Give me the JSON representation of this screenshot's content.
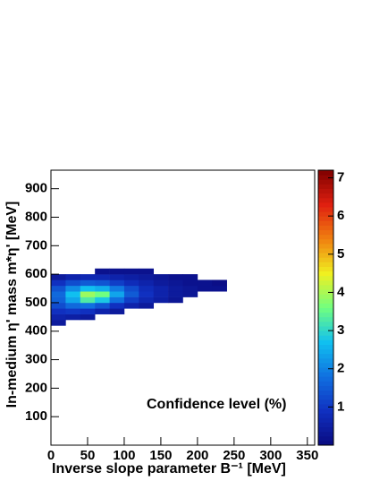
{
  "chart_data": {
    "type": "heatmap",
    "x_label": "Inverse slope parameter   B⁻¹ [MeV]",
    "y_label": "In-medium η' mass   m*η' [MeV]",
    "annotation": "Confidence level (%)",
    "xlim": [
      0,
      360
    ],
    "ylim": [
      0,
      965
    ],
    "zlim": [
      0,
      7.2
    ],
    "xticks": [
      0,
      50,
      100,
      150,
      200,
      250,
      300,
      350
    ],
    "yticks": [
      100,
      200,
      300,
      400,
      500,
      600,
      700,
      800,
      900
    ],
    "zticks": [
      1,
      2,
      3,
      4,
      5,
      6,
      7
    ],
    "palette": [
      "#0a0a80",
      "#1030c0",
      "#1070e0",
      "#10c0f0",
      "#70ff80",
      "#f0f020",
      "#f08010",
      "#e02010",
      "#800000"
    ],
    "xbins": [
      0,
      20,
      40,
      60,
      80,
      100,
      120,
      140,
      160,
      180,
      200,
      220,
      240
    ],
    "ybins": [
      420,
      440,
      460,
      480,
      500,
      520,
      540,
      560,
      580,
      600,
      620
    ],
    "values": [
      [
        0.4,
        null,
        null,
        null,
        null,
        null,
        null,
        null,
        null,
        null,
        null,
        null
      ],
      [
        0.6,
        0.5,
        0.4,
        null,
        null,
        null,
        null,
        null,
        null,
        null,
        null,
        null
      ],
      [
        0.9,
        1.0,
        0.9,
        0.6,
        0.4,
        null,
        null,
        null,
        null,
        null,
        null,
        null
      ],
      [
        1.3,
        1.7,
        1.8,
        1.4,
        0.9,
        0.6,
        0.4,
        null,
        null,
        null,
        null,
        null
      ],
      [
        1.6,
        2.4,
        3.3,
        2.8,
        1.8,
        1.1,
        0.7,
        0.5,
        0.3,
        null,
        null,
        null
      ],
      [
        1.7,
        2.7,
        3.9,
        3.6,
        2.4,
        1.5,
        0.9,
        0.6,
        0.4,
        0.3,
        null,
        null
      ],
      [
        1.4,
        2.1,
        2.7,
        2.5,
        1.9,
        1.3,
        0.8,
        0.6,
        0.4,
        0.3,
        0.2,
        0.2
      ],
      [
        0.9,
        1.3,
        1.5,
        1.4,
        1.1,
        0.8,
        0.6,
        0.4,
        0.3,
        0.2,
        0.2,
        0.1
      ],
      [
        0.4,
        0.6,
        0.7,
        0.7,
        0.6,
        0.5,
        0.4,
        0.3,
        0.2,
        0.2,
        null,
        null
      ],
      [
        null,
        null,
        null,
        0.2,
        0.2,
        0.2,
        0.2,
        null,
        null,
        null,
        null,
        null
      ]
    ]
  }
}
